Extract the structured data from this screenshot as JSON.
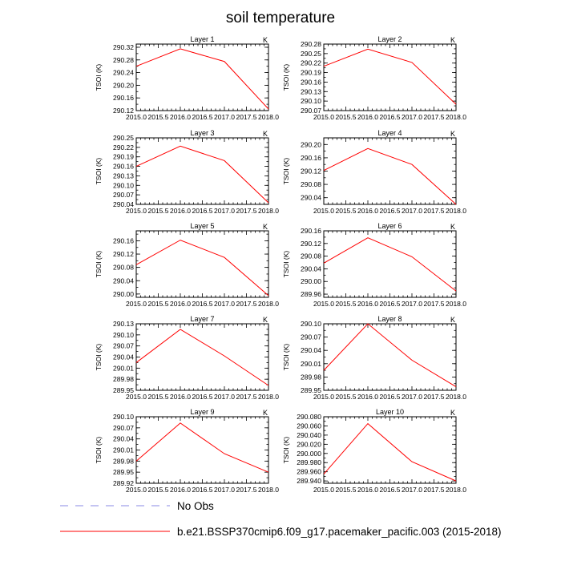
{
  "title": "soil temperature",
  "legend": [
    {
      "label": "No Obs",
      "color": "#8a8ae6",
      "dash": true
    },
    {
      "label": "b.e21.BSSP370cmip6.f09_g17.pacemaker_pacific.003 (2015-2018)",
      "color": "#ff0000",
      "dash": false
    }
  ],
  "chart_data": [
    {
      "type": "line",
      "title": "Layer 1",
      "ylabel": "TSOI  (K)",
      "units": "K",
      "x": [
        2015,
        2016,
        2017,
        2018
      ],
      "values": [
        290.26,
        290.315,
        290.275,
        290.125
      ],
      "xlim": [
        2015,
        2018
      ],
      "ylim": [
        290.12,
        290.33
      ],
      "yticks": [
        290.12,
        290.16,
        290.2,
        290.24,
        290.28,
        290.32
      ],
      "ytick_labels": [
        "290.12",
        "290.16",
        "290.20",
        "290.24",
        "290.28",
        "290.32"
      ]
    },
    {
      "type": "line",
      "title": "Layer 2",
      "ylabel": "TSOI  (K)",
      "units": "K",
      "x": [
        2015,
        2016,
        2017,
        2018
      ],
      "values": [
        290.21,
        290.264,
        290.222,
        290.09
      ],
      "xlim": [
        2015,
        2018
      ],
      "ylim": [
        290.07,
        290.28
      ],
      "yticks": [
        290.07,
        290.1,
        290.13,
        290.16,
        290.19,
        290.22,
        290.25,
        290.28
      ],
      "ytick_labels": [
        "290.07",
        "290.10",
        "290.13",
        "290.16",
        "290.19",
        "290.22",
        "290.25",
        "290.28"
      ]
    },
    {
      "type": "line",
      "title": "Layer 3",
      "ylabel": "TSOI  (K)",
      "units": "K",
      "x": [
        2015,
        2016,
        2017,
        2018
      ],
      "values": [
        290.16,
        290.224,
        290.178,
        290.045
      ],
      "xlim": [
        2015,
        2018
      ],
      "ylim": [
        290.04,
        290.25
      ],
      "yticks": [
        290.04,
        290.07,
        290.1,
        290.13,
        290.16,
        290.19,
        290.22,
        290.25
      ],
      "ytick_labels": [
        "290.04",
        "290.07",
        "290.10",
        "290.13",
        "290.16",
        "290.19",
        "290.22",
        "290.25"
      ]
    },
    {
      "type": "line",
      "title": "Layer 4",
      "ylabel": "TSOI  (K)",
      "units": "K",
      "x": [
        2015,
        2016,
        2017,
        2018
      ],
      "values": [
        290.122,
        290.188,
        290.14,
        290.02
      ],
      "xlim": [
        2015,
        2018
      ],
      "ylim": [
        290.02,
        290.22
      ],
      "yticks": [
        290.04,
        290.08,
        290.12,
        290.16,
        290.2
      ],
      "ytick_labels": [
        "290.04",
        "290.08",
        "290.12",
        "290.16",
        "290.20"
      ]
    },
    {
      "type": "line",
      "title": "Layer 5",
      "ylabel": "TSOI  (K)",
      "units": "K",
      "x": [
        2015,
        2016,
        2017,
        2018
      ],
      "values": [
        290.088,
        290.162,
        290.11,
        289.995
      ],
      "xlim": [
        2015,
        2018
      ],
      "ylim": [
        289.99,
        290.19
      ],
      "yticks": [
        290.0,
        290.04,
        290.08,
        290.12,
        290.16
      ],
      "ytick_labels": [
        "290.00",
        "290.04",
        "290.08",
        "290.12",
        "290.16"
      ]
    },
    {
      "type": "line",
      "title": "Layer 6",
      "ylabel": "TSOI  (K)",
      "units": "K",
      "x": [
        2015,
        2016,
        2017,
        2018
      ],
      "values": [
        290.058,
        290.138,
        290.078,
        289.97
      ],
      "xlim": [
        2015,
        2018
      ],
      "ylim": [
        289.95,
        290.16
      ],
      "yticks": [
        289.96,
        290.0,
        290.04,
        290.08,
        290.12,
        290.16
      ],
      "ytick_labels": [
        "289.96",
        "290.00",
        "290.04",
        "290.08",
        "290.12",
        "290.16"
      ]
    },
    {
      "type": "line",
      "title": "Layer 7",
      "ylabel": "TSOI  (K)",
      "units": "K",
      "x": [
        2015,
        2016,
        2017,
        2018
      ],
      "values": [
        290.025,
        290.115,
        290.043,
        289.963
      ],
      "xlim": [
        2015,
        2018
      ],
      "ylim": [
        289.95,
        290.13
      ],
      "yticks": [
        289.95,
        289.98,
        290.01,
        290.04,
        290.07,
        290.1,
        290.13
      ],
      "ytick_labels": [
        "289.95",
        "289.98",
        "290.01",
        "290.04",
        "290.07",
        "290.10",
        "290.13"
      ]
    },
    {
      "type": "line",
      "title": "Layer 8",
      "ylabel": "TSOI  (K)",
      "units": "K",
      "x": [
        2015,
        2016,
        2017,
        2018
      ],
      "values": [
        289.995,
        290.1,
        290.018,
        289.958
      ],
      "xlim": [
        2015,
        2018
      ],
      "ylim": [
        289.95,
        290.1
      ],
      "yticks": [
        289.95,
        289.98,
        290.01,
        290.04,
        290.07,
        290.1
      ],
      "ytick_labels": [
        "289.95",
        "289.98",
        "290.01",
        "290.04",
        "290.07",
        "290.10"
      ]
    },
    {
      "type": "line",
      "title": "Layer 9",
      "ylabel": "TSOI  (K)",
      "units": "K",
      "x": [
        2015,
        2016,
        2017,
        2018
      ],
      "values": [
        289.98,
        290.083,
        290.0,
        289.95
      ],
      "xlim": [
        2015,
        2018
      ],
      "ylim": [
        289.92,
        290.1
      ],
      "yticks": [
        289.92,
        289.95,
        289.98,
        290.01,
        290.04,
        290.07,
        290.1
      ],
      "ytick_labels": [
        "289.92",
        "289.95",
        "289.98",
        "290.01",
        "290.04",
        "290.07",
        "290.10"
      ]
    },
    {
      "type": "line",
      "title": "Layer 10",
      "ylabel": "TSOI  (K)",
      "units": "K",
      "x": [
        2015,
        2016,
        2017,
        2018
      ],
      "values": [
        289.955,
        290.065,
        289.982,
        289.94
      ],
      "xlim": [
        2015,
        2018
      ],
      "ylim": [
        289.935,
        290.08
      ],
      "yticks": [
        289.94,
        289.96,
        289.98,
        290.0,
        290.02,
        290.04,
        290.06,
        290.08
      ],
      "ytick_labels": [
        "289.940",
        "289.960",
        "289.980",
        "290.000",
        "290.020",
        "290.040",
        "290.060",
        "290.080"
      ]
    }
  ],
  "xticks": [
    2015.0,
    2015.5,
    2016.0,
    2016.5,
    2017.0,
    2017.5,
    2018.0
  ],
  "xtick_labels": [
    "2015.0",
    "2015.5",
    "2016.0",
    "2016.5",
    "2017.0",
    "2017.5",
    "2018.0"
  ],
  "colors": {
    "series": "#ff0000",
    "axes": "#000000",
    "background": "#ffffff"
  }
}
